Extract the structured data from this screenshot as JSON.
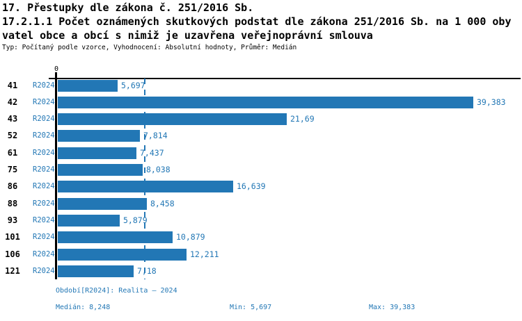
{
  "header": {
    "title_line1": "17. Přestupky dle zákona č. 251/2016 Sb.",
    "title_line2": "17.2.1.1 Počet oznámených skutkových podstat dle zákona 251/2016 Sb. na 1 000 oby",
    "title_line3": "vatel obce a obcí s nimiž je uzavřena veřejnoprávní smlouva",
    "meta_line": "Typ: Počítaný podle vzorce, Vyhodnocení: Absolutní hodnoty, Průměr: Medián"
  },
  "chart_data": {
    "type": "bar",
    "orientation": "horizontal",
    "title": "17. Přestupky dle zákona č. 251/2016 Sb.",
    "subtitle": "17.2.1.1 Počet oznámených skutkových podstat dle zákona 251/2016 Sb. na 1 000 obyvatel obce a obcí s nimiž je uzavřena veřejnoprávní smlouva",
    "meta": "Typ: Počítaný podle vzorce, Vyhodnocení: Absolutní hodnoty, Průměr: Medián",
    "series_name": "R2024",
    "categories": [
      "41",
      "42",
      "43",
      "52",
      "61",
      "75",
      "86",
      "88",
      "93",
      "101",
      "106",
      "121"
    ],
    "values": [
      5.697,
      39.383,
      21.69,
      7.814,
      7.437,
      8.038,
      16.639,
      8.458,
      5.879,
      10.879,
      12.211,
      7.18
    ],
    "value_labels": [
      "5,697",
      "39,383",
      "21,69",
      "7,814",
      "7,437",
      "8,038",
      "16,639",
      "8,458",
      "5,879",
      "10,879",
      "12,211",
      "7,18"
    ],
    "x_axis_zero_label": "0",
    "xlim": [
      0,
      43.9
    ],
    "median": 8.248,
    "min": 5.697,
    "max": 39.383,
    "median_line": true,
    "grid": false,
    "legend_position": "none",
    "bar_color": "#2277b5",
    "label_color": "#2277b5",
    "axis_color": "#000000"
  },
  "footer": {
    "period_label": "Období[R2024]: Realita – 2024",
    "median_label": "Medián: 8,248",
    "min_label": "Min: 5,697",
    "max_label": "Max: 39,383"
  }
}
